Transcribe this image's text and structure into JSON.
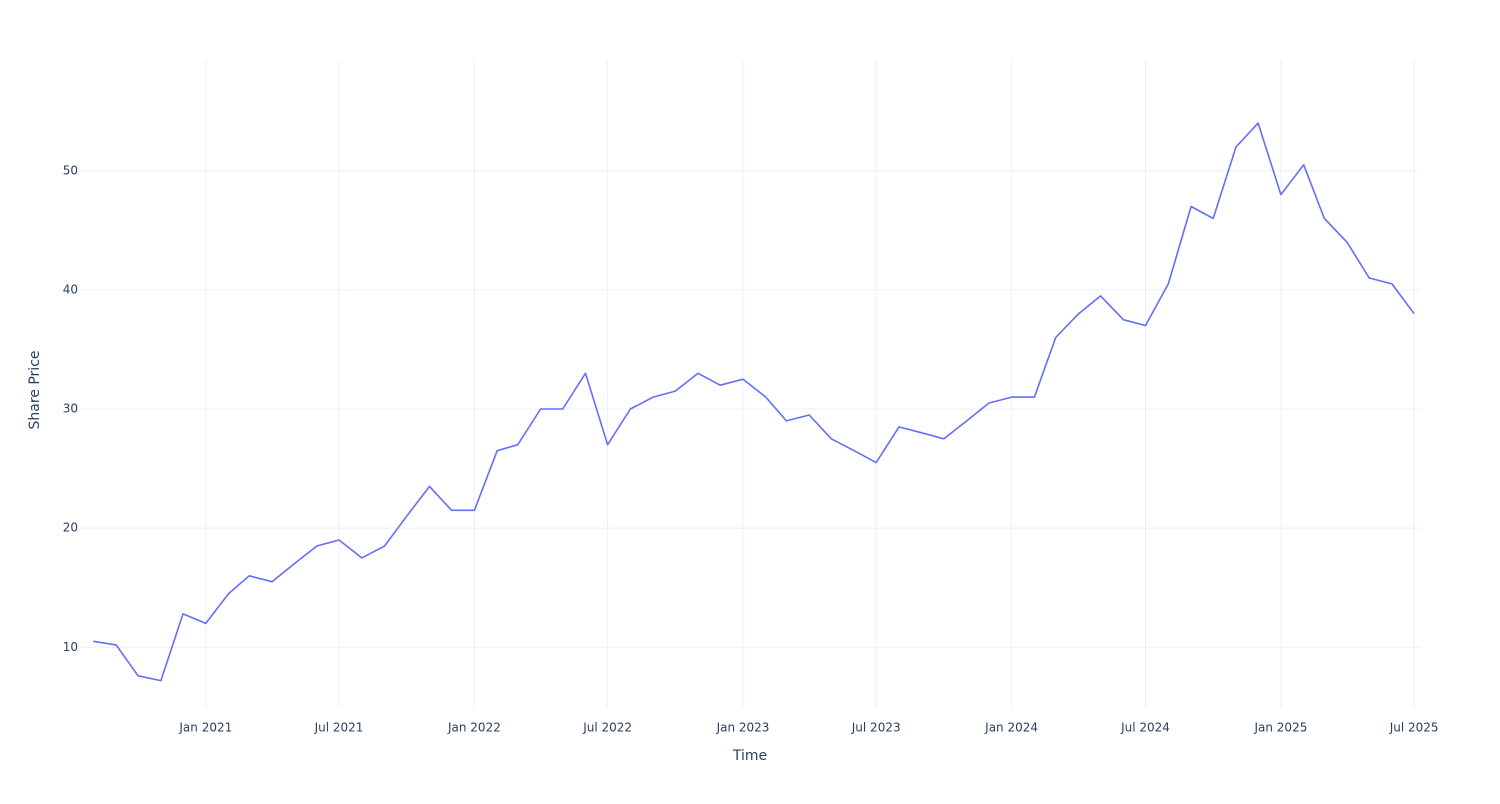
{
  "chart_data": {
    "type": "line",
    "x_label": "Time",
    "y_label": "Share Price",
    "x": [
      "2020-08",
      "2020-09",
      "2020-10",
      "2020-11",
      "2020-12",
      "2021-01",
      "2021-02",
      "2021-03",
      "2021-04",
      "2021-05",
      "2021-06",
      "2021-07",
      "2021-08",
      "2021-09",
      "2021-10",
      "2021-11",
      "2021-12",
      "2022-01",
      "2022-02",
      "2022-03",
      "2022-04",
      "2022-05",
      "2022-06",
      "2022-07",
      "2022-08",
      "2022-09",
      "2022-10",
      "2022-11",
      "2022-12",
      "2023-01",
      "2023-02",
      "2023-03",
      "2023-04",
      "2023-05",
      "2023-06",
      "2023-07",
      "2023-08",
      "2023-09",
      "2023-10",
      "2023-11",
      "2023-12",
      "2024-01",
      "2024-02",
      "2024-03",
      "2024-04",
      "2024-05",
      "2024-06",
      "2024-07",
      "2024-08",
      "2024-09",
      "2024-10",
      "2024-11",
      "2024-12",
      "2025-01",
      "2025-02",
      "2025-03",
      "2025-04",
      "2025-05",
      "2025-06",
      "2025-07"
    ],
    "series": [
      {
        "name": "Share Price",
        "color": "#636efa",
        "values": [
          10.5,
          10.2,
          7.6,
          7.2,
          12.8,
          12.0,
          14.5,
          16.0,
          15.5,
          17.0,
          18.5,
          19.0,
          17.5,
          18.5,
          21.0,
          23.5,
          21.5,
          21.5,
          26.5,
          27.0,
          30.0,
          30.0,
          33.0,
          27.0,
          30.0,
          31.0,
          31.5,
          33.0,
          32.0,
          32.5,
          31.0,
          29.0,
          29.5,
          27.5,
          26.5,
          25.5,
          28.5,
          28.0,
          27.5,
          29.0,
          30.5,
          31.0,
          31.0,
          36.0,
          38.0,
          39.5,
          37.5,
          37.0,
          40.5,
          47.0,
          46.0,
          52.0,
          54.0,
          48.0,
          50.5,
          46.0,
          44.0,
          41.0,
          40.5,
          38.0
        ]
      }
    ],
    "xlim": [
      "2020-07-14",
      "2025-07-09"
    ],
    "xticks": [
      {
        "value": "2021-01",
        "label": "Jan 2021"
      },
      {
        "value": "2021-07",
        "label": "Jul 2021"
      },
      {
        "value": "2022-01",
        "label": "Jan 2022"
      },
      {
        "value": "2022-07",
        "label": "Jul 2022"
      },
      {
        "value": "2023-01",
        "label": "Jan 2023"
      },
      {
        "value": "2023-07",
        "label": "Jul 2023"
      },
      {
        "value": "2024-01",
        "label": "Jan 2024"
      },
      {
        "value": "2024-07",
        "label": "Jul 2024"
      },
      {
        "value": "2025-01",
        "label": "Jan 2025"
      },
      {
        "value": "2025-07",
        "label": "Jul 2025"
      }
    ],
    "ylim": [
      4.9,
      59.3
    ],
    "yticks": [
      10,
      20,
      30,
      40,
      50
    ],
    "grid": true
  }
}
